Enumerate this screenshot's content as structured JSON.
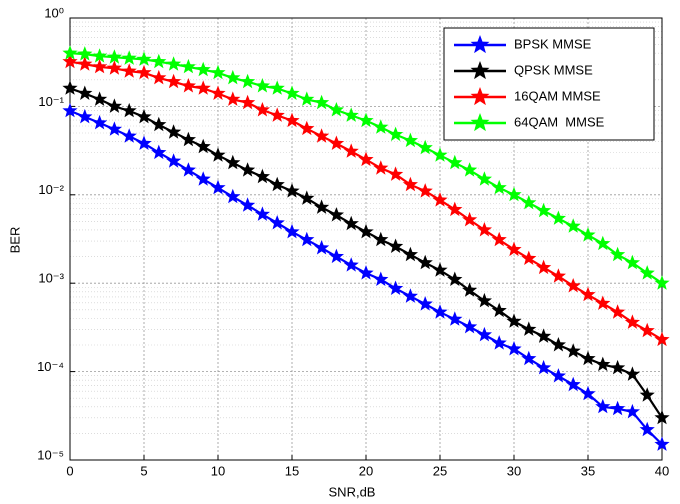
{
  "chart_data": {
    "type": "line",
    "xlabel": "SNR,dB",
    "ylabel": "BER",
    "x": [
      0,
      1,
      2,
      3,
      4,
      5,
      6,
      7,
      8,
      9,
      10,
      11,
      12,
      13,
      14,
      15,
      16,
      17,
      18,
      19,
      20,
      21,
      22,
      23,
      24,
      25,
      26,
      27,
      28,
      29,
      30,
      31,
      32,
      33,
      34,
      35,
      36,
      37,
      38,
      39,
      40
    ],
    "series": [
      {
        "name": "BPSK MMSE",
        "color": "#0000ff",
        "values": [
          0.089,
          0.076,
          0.065,
          0.055,
          0.046,
          0.038,
          0.03,
          0.024,
          0.019,
          0.015,
          0.012,
          0.0095,
          0.0076,
          0.006,
          0.0048,
          0.0038,
          0.0031,
          0.0025,
          0.002,
          0.0016,
          0.0013,
          0.0011,
          0.00087,
          0.00071,
          0.00058,
          0.00047,
          0.00039,
          0.00032,
          0.00026,
          0.00021,
          0.00018,
          0.00014,
          0.00011,
          8.9e-05,
          7.1e-05,
          5.6e-05,
          4e-05,
          3.8e-05,
          3.5e-05,
          2.2e-05,
          1.5e-05
        ]
      },
      {
        "name": "QPSK MMSE",
        "color": "#000000",
        "values": [
          0.16,
          0.14,
          0.12,
          0.1,
          0.089,
          0.076,
          0.062,
          0.051,
          0.042,
          0.035,
          0.028,
          0.023,
          0.019,
          0.016,
          0.013,
          0.011,
          0.0091,
          0.0072,
          0.0059,
          0.0047,
          0.0038,
          0.0031,
          0.0026,
          0.0021,
          0.0017,
          0.0014,
          0.0011,
          0.00083,
          0.00063,
          0.00049,
          0.00037,
          0.0003,
          0.00025,
          0.0002,
          0.00017,
          0.00014,
          0.00012,
          0.00011,
          9.3e-05,
          5.4e-05,
          3e-05
        ]
      },
      {
        "name": "16QAM MMSE",
        "color": "#ff0000",
        "values": [
          0.32,
          0.3,
          0.28,
          0.27,
          0.25,
          0.24,
          0.21,
          0.19,
          0.17,
          0.16,
          0.14,
          0.12,
          0.11,
          0.091,
          0.079,
          0.069,
          0.056,
          0.046,
          0.038,
          0.031,
          0.025,
          0.02,
          0.017,
          0.013,
          0.011,
          0.0087,
          0.0068,
          0.0052,
          0.004,
          0.0031,
          0.0024,
          0.0019,
          0.0015,
          0.0012,
          0.00093,
          0.00074,
          0.00059,
          0.00047,
          0.00036,
          0.00029,
          0.00023
        ]
      },
      {
        "name": "64QAM  MMSE",
        "color": "#00ff00",
        "values": [
          0.4,
          0.39,
          0.37,
          0.36,
          0.35,
          0.34,
          0.32,
          0.3,
          0.28,
          0.26,
          0.24,
          0.21,
          0.19,
          0.17,
          0.16,
          0.14,
          0.12,
          0.11,
          0.091,
          0.079,
          0.069,
          0.058,
          0.048,
          0.041,
          0.034,
          0.028,
          0.023,
          0.019,
          0.015,
          0.012,
          0.01,
          0.0081,
          0.0066,
          0.0054,
          0.0044,
          0.0035,
          0.0028,
          0.0021,
          0.0017,
          0.0013,
          0.001
        ]
      }
    ],
    "xlim": [
      0,
      40
    ],
    "xticks": [
      0,
      5,
      10,
      15,
      20,
      25,
      30,
      35,
      40
    ],
    "ylim": [
      1e-05,
      1
    ],
    "yticks": [
      {
        "value": 1e-05,
        "label": "10⁻⁵"
      },
      {
        "value": 0.0001,
        "label": "10⁻⁴"
      },
      {
        "value": 0.001,
        "label": "10⁻³"
      },
      {
        "value": 0.01,
        "label": "10⁻²"
      },
      {
        "value": 0.1,
        "label": "10⁻¹"
      },
      {
        "value": 1,
        "label": "10⁰"
      }
    ],
    "ylog": true,
    "grid": true,
    "legend": "upper right"
  }
}
